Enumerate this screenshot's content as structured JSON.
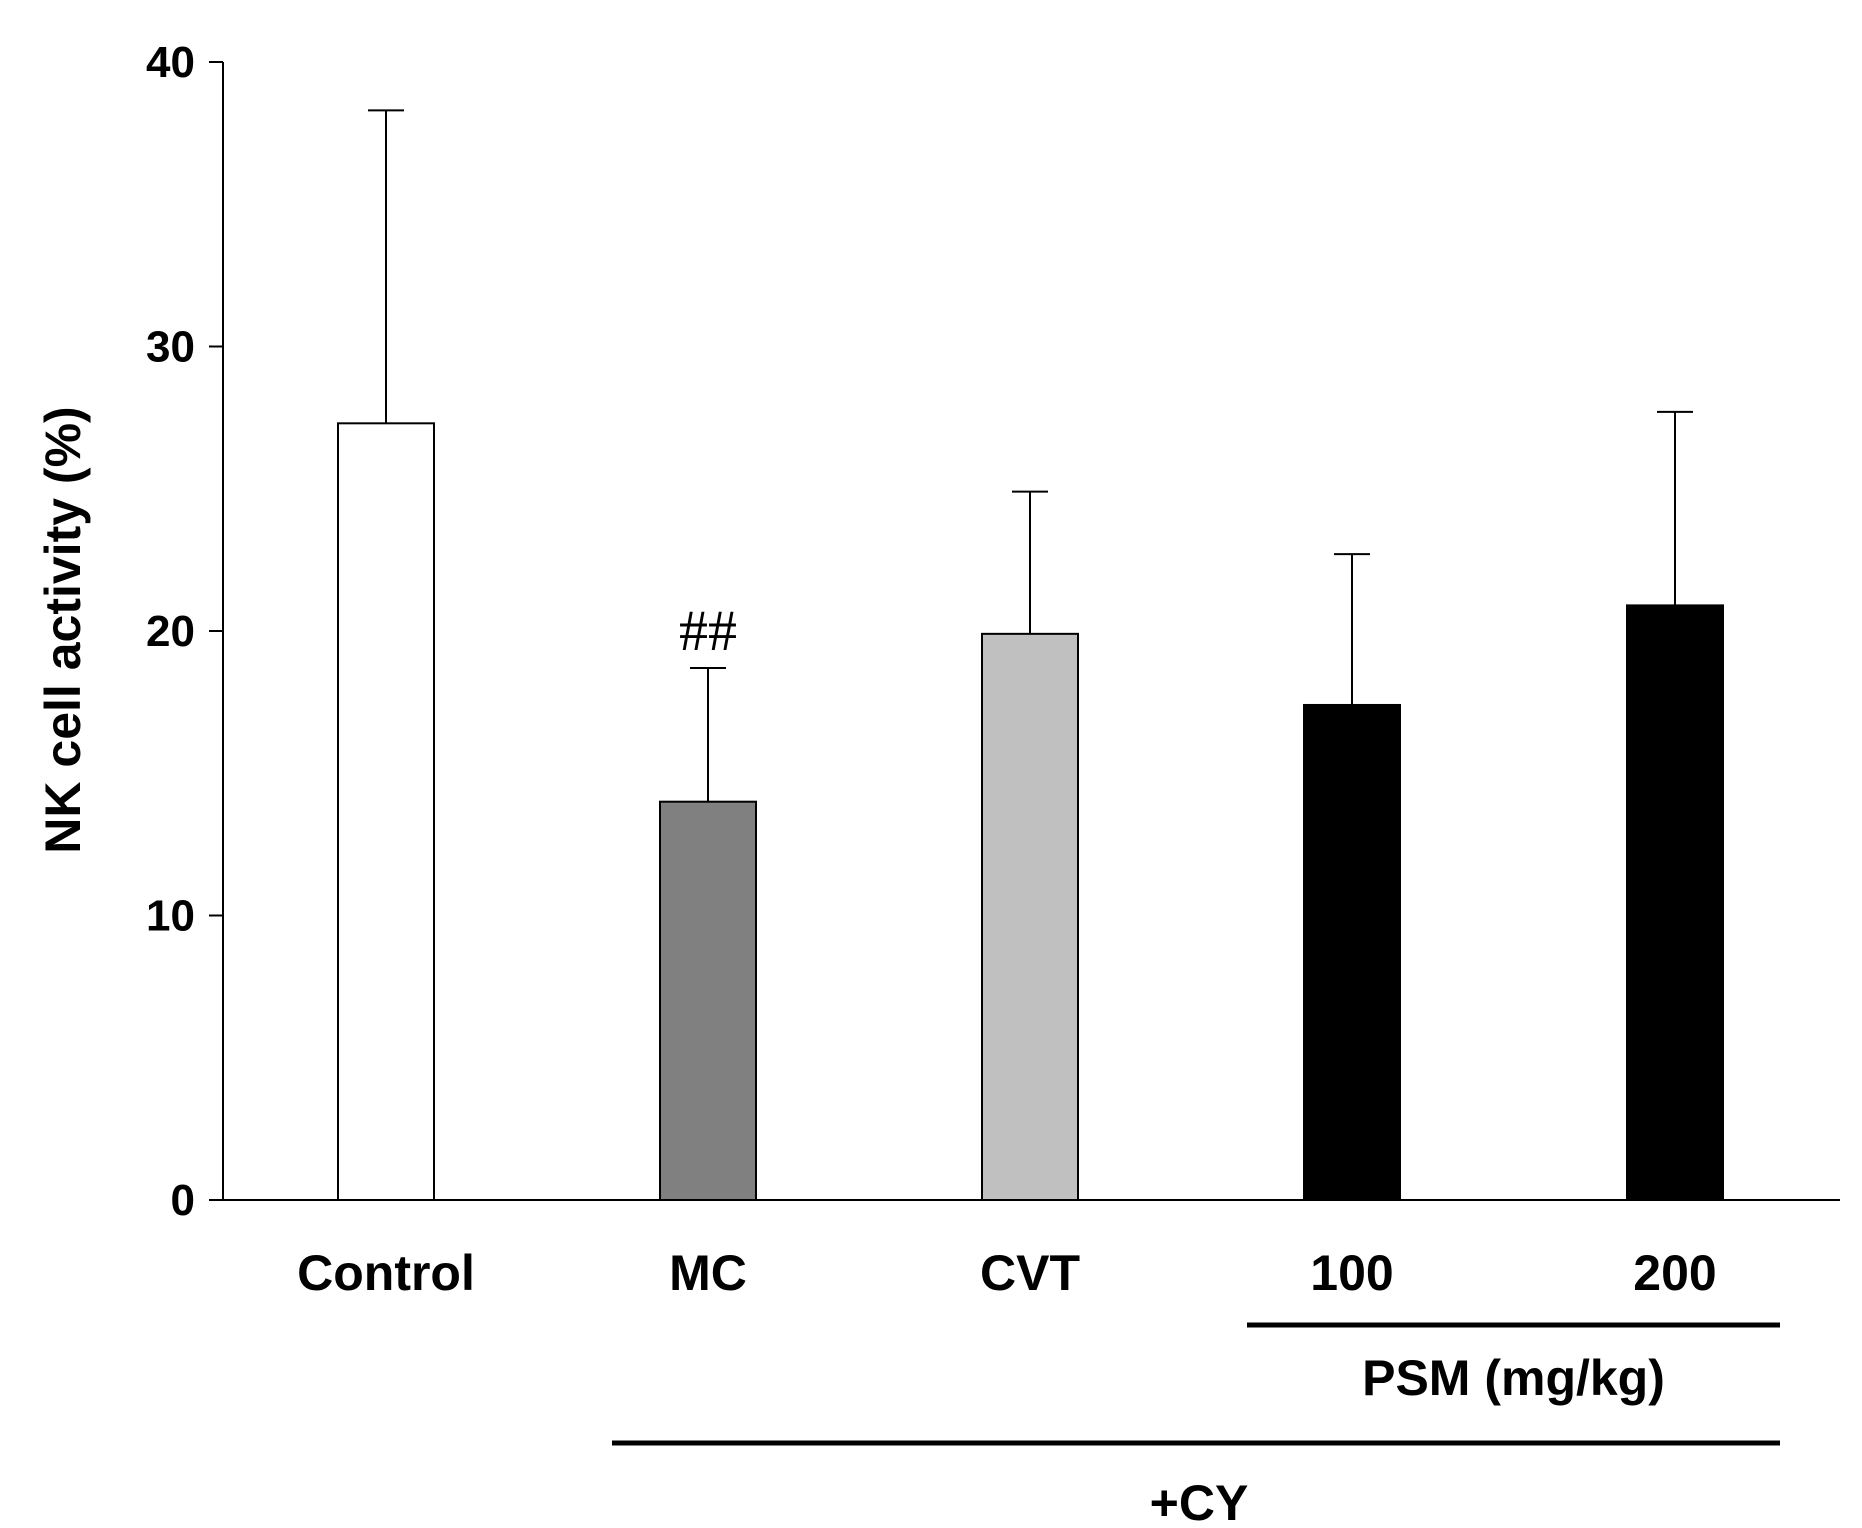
{
  "chart_data": {
    "type": "bar",
    "title": "",
    "xlabel": "",
    "ylabel": "NK cell activity (%)",
    "ylim": [
      0,
      40
    ],
    "yticks": [
      0,
      10,
      20,
      30,
      40
    ],
    "grid": false,
    "categories": [
      "Control",
      "MC",
      "CVT",
      "100",
      "200"
    ],
    "values": [
      27.3,
      14.0,
      19.9,
      17.4,
      20.9
    ],
    "errors": [
      11.0,
      4.7,
      5.0,
      5.3,
      6.8
    ],
    "bar_colors": [
      "#ffffff",
      "#808080",
      "#c0c0c0",
      "#000000",
      "#000000"
    ],
    "annotations": [
      {
        "category": "MC",
        "text": "##"
      }
    ],
    "groups": [
      {
        "label": "PSM (mg/kg)",
        "from": "100",
        "to": "200"
      },
      {
        "label": "+CY",
        "from": "MC",
        "to": "200"
      }
    ]
  }
}
